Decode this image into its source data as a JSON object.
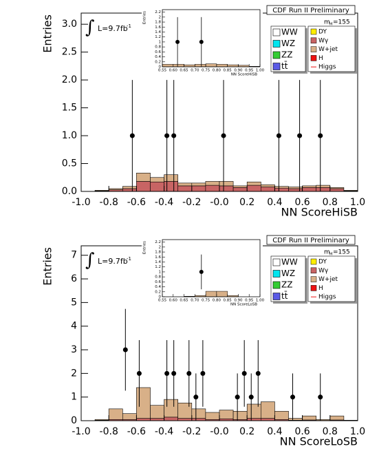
{
  "chart_data": [
    {
      "type": "histogram",
      "header": "CDF Run II Preliminary",
      "ylabel": "Entries",
      "xlabel": "NN ScoreHiSB",
      "lumi": {
        "sign": "∫",
        "text": "L=9.7fb",
        "sup": "-1"
      },
      "mass": {
        "text": "m",
        "sub": "H",
        "rest": "=155"
      },
      "xlim": [
        -1,
        1
      ],
      "xticks": [
        {
          "value": -1,
          "label": "-1.0"
        },
        -0.8,
        -0.6,
        -0.4,
        -0.2,
        {
          "value": 0,
          "label": "-0.0"
        },
        0.2,
        0.4,
        0.6,
        0.8,
        {
          "value": 1,
          "label": "1.0"
        }
      ],
      "ylim": [
        0,
        3.2
      ],
      "yticks": [
        {
          "value": 0,
          "label": "0.0"
        },
        0.5,
        {
          "value": 1,
          "label": "1.0"
        },
        1.5,
        {
          "value": 2,
          "label": "2.0"
        },
        2.5,
        {
          "value": 3,
          "label": "3.0"
        }
      ],
      "bins": [
        -1,
        -0.9,
        -0.8,
        -0.7,
        -0.6,
        -0.5,
        -0.4,
        -0.3,
        -0.2,
        -0.1,
        0,
        0.1,
        0.2,
        0.3,
        0.4,
        0.5,
        0.6,
        0.7,
        0.8,
        0.9,
        1
      ],
      "series": [
        {
          "name": "WW",
          "color": "#ffffff"
        },
        {
          "name": "WZ",
          "color": "#00e5ee"
        },
        {
          "name": "ZZ",
          "color": "#33cc33"
        },
        {
          "name": "tt̄",
          "color": "#5a5ae6"
        },
        {
          "name": "DY",
          "color": "#ffee00"
        },
        {
          "name": "Wγ",
          "color": "#c86464",
          "values": [
            0,
            0.01,
            0.03,
            0.05,
            0.18,
            0.17,
            0.18,
            0.1,
            0.1,
            0.11,
            0.1,
            0.07,
            0.11,
            0.08,
            0.06,
            0.05,
            0.07,
            0.07,
            0.05,
            0.01
          ]
        },
        {
          "name": "W+jet",
          "color": "#d8b088",
          "values": [
            0,
            0.01,
            0.02,
            0.04,
            0.15,
            0.08,
            0.12,
            0.05,
            0.05,
            0.07,
            0.08,
            0.03,
            0.06,
            0.04,
            0.03,
            0.03,
            0.03,
            0.04,
            0.02,
            0.01
          ]
        },
        {
          "name": "H",
          "color": "#ee1111"
        },
        {
          "name": "Higgs",
          "color": "#ee1111"
        }
      ],
      "data_points": {
        "x": [
          -0.63,
          -0.38,
          -0.33,
          0.03,
          0.43,
          0.58,
          0.73
        ],
        "y": [
          1,
          1,
          1,
          1,
          1,
          1,
          1
        ],
        "yerr": [
          1,
          1,
          1,
          1,
          1,
          1,
          1
        ]
      },
      "inset": {
        "ylabel": "Entries",
        "xlabel": "NN ScoreHiSB",
        "xlim": [
          0.55,
          1.0
        ],
        "xticks": [
          0.55,
          {
            "value": 0.6,
            "label": "0.60"
          },
          0.65,
          {
            "value": 0.7,
            "label": "0.70"
          },
          0.75,
          {
            "value": 0.8,
            "label": "0.80"
          },
          0.85,
          {
            "value": 0.9,
            "label": "0.90"
          },
          0.95,
          {
            "value": 1.0,
            "label": "1.00"
          }
        ],
        "ylim": [
          0,
          2.3
        ],
        "yticks": [
          0,
          0.2,
          0.4,
          0.6,
          0.8,
          1,
          1.2,
          1.4,
          1.6,
          1.8,
          2,
          2.2
        ],
        "bins": [
          0.55,
          0.6,
          0.65,
          0.7,
          0.75,
          0.8,
          0.85,
          0.9,
          0.95,
          1.0
        ],
        "values": [
          0.1,
          0.1,
          0.08,
          0.1,
          0.12,
          0.1,
          0.08,
          0.06,
          0.02
        ],
        "color": "#d8b088",
        "data_points": {
          "x": [
            0.62,
            0.73
          ],
          "y": [
            1,
            1
          ],
          "yerr": [
            1,
            1
          ]
        }
      }
    },
    {
      "type": "histogram",
      "header": "CDF Run II Preliminary",
      "ylabel": "Entries",
      "xlabel": "NN ScoreLoSB",
      "lumi": {
        "sign": "∫",
        "text": "L=9.7fb",
        "sup": "-1"
      },
      "mass": {
        "text": "m",
        "sub": "H",
        "rest": "=155"
      },
      "xlim": [
        -1,
        1
      ],
      "xticks": [
        {
          "value": -1,
          "label": "-1.0"
        },
        -0.8,
        -0.6,
        -0.4,
        -0.2,
        {
          "value": 0,
          "label": "-0.0"
        },
        0.2,
        0.4,
        0.6,
        0.8,
        {
          "value": 1,
          "label": "1.0"
        }
      ],
      "ylim": [
        0,
        7.4
      ],
      "yticks": [
        0,
        1,
        2,
        3,
        4,
        5,
        6,
        7
      ],
      "bins": [
        -1,
        -0.9,
        -0.8,
        -0.7,
        -0.6,
        -0.5,
        -0.4,
        -0.3,
        -0.2,
        -0.1,
        0,
        0.1,
        0.2,
        0.3,
        0.4,
        0.5,
        0.6,
        0.7,
        0.8,
        0.9,
        1
      ],
      "series": [
        {
          "name": "WW",
          "color": "#ffffff"
        },
        {
          "name": "WZ",
          "color": "#00e5ee"
        },
        {
          "name": "ZZ",
          "color": "#33cc33"
        },
        {
          "name": "tt̄",
          "color": "#5a5ae6"
        },
        {
          "name": "DY",
          "color": "#ffee00"
        },
        {
          "name": "Wγ",
          "color": "#c86464",
          "values": [
            0,
            0.02,
            0.05,
            0.05,
            0.1,
            0.1,
            0.15,
            0.1,
            0.1,
            0.05,
            0.08,
            0.05,
            0.1,
            0.1,
            0.05,
            0.02,
            0.03,
            0.01,
            0.03,
            0
          ]
        },
        {
          "name": "W+jet",
          "color": "#d8b088",
          "values": [
            0,
            0.03,
            0.45,
            0.25,
            1.3,
            0.55,
            0.75,
            0.65,
            0.4,
            0.3,
            0.37,
            0.35,
            0.6,
            0.7,
            0.35,
            0.08,
            0.17,
            0.04,
            0.17,
            0.02
          ]
        },
        {
          "name": "H",
          "color": "#ee1111"
        },
        {
          "name": "Higgs",
          "color": "#ee1111"
        }
      ],
      "data_points": {
        "x": [
          -0.68,
          -0.58,
          -0.38,
          -0.33,
          -0.22,
          -0.17,
          -0.12,
          0.13,
          0.18,
          0.23,
          0.28,
          0.53,
          0.73
        ],
        "y": [
          3,
          2,
          2,
          2,
          2,
          1,
          2,
          1,
          2,
          1,
          2,
          1,
          1
        ],
        "yerr": [
          1.73,
          1.41,
          1.41,
          1.41,
          1.41,
          1,
          1.41,
          1,
          1.41,
          1,
          1.41,
          1,
          1
        ]
      },
      "inset": {
        "ylabel": "Entries",
        "xlabel": "NN ScoreLoSB",
        "xlim": [
          0.55,
          1.0
        ],
        "xticks": [
          0.55,
          {
            "value": 0.6,
            "label": "0.60"
          },
          0.65,
          {
            "value": 0.7,
            "label": "0.70"
          },
          0.75,
          {
            "value": 0.8,
            "label": "0.80"
          },
          0.85,
          {
            "value": 0.9,
            "label": "0.90"
          },
          0.95,
          {
            "value": 1.0,
            "label": "1.00"
          }
        ],
        "ylim": [
          0,
          2.3
        ],
        "yticks": [
          0,
          0.2,
          0.4,
          0.6,
          0.8,
          1,
          1.2,
          1.4,
          1.6,
          1.8,
          2,
          2.2
        ],
        "bins": [
          0.55,
          0.6,
          0.65,
          0.7,
          0.75,
          0.8,
          0.85,
          0.9,
          0.95,
          1.0
        ],
        "values": [
          0,
          0,
          0.02,
          0.05,
          0.22,
          0.22,
          0.05,
          0,
          0
        ],
        "color": "#d8b088",
        "data_points": {
          "x": [
            0.73
          ],
          "y": [
            1
          ],
          "yerr": [
            0.7
          ]
        }
      }
    }
  ]
}
